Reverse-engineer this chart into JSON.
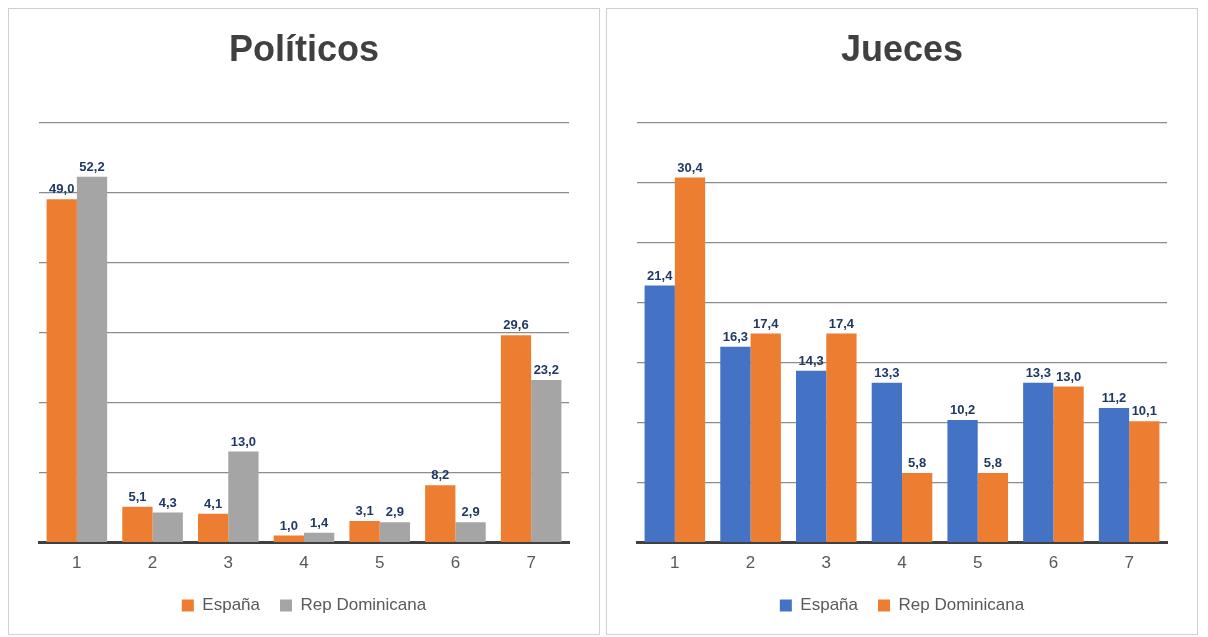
{
  "chart_data": [
    {
      "type": "bar",
      "title": "Políticos",
      "categories": [
        "1",
        "2",
        "3",
        "4",
        "5",
        "6",
        "7"
      ],
      "series": [
        {
          "name": "España",
          "color": "#ed7d31",
          "values": [
            49.0,
            5.1,
            4.1,
            1.0,
            3.1,
            8.2,
            29.6
          ],
          "value_labels": [
            "49,0",
            "5,1",
            "4,1",
            "1,0",
            "3,1",
            "8,2",
            "29,6"
          ]
        },
        {
          "name": "Rep Dominicana",
          "color": "#a5a5a5",
          "values": [
            52.2,
            4.3,
            13.0,
            1.4,
            2.9,
            2.9,
            23.2
          ],
          "value_labels": [
            "52,2",
            "4,3",
            "13,0",
            "1,4",
            "2,9",
            "2,9",
            "23,2"
          ]
        }
      ],
      "ylim": [
        0,
        60
      ],
      "yticks": [
        {
          "value": 0,
          "label": null
        },
        {
          "value": 10,
          "label": null
        },
        {
          "value": 20,
          "label": null
        },
        {
          "value": 30,
          "label": null
        },
        {
          "value": 40,
          "label": null
        },
        {
          "value": 50,
          "label": null
        },
        {
          "value": 60,
          "label": null
        }
      ],
      "tick_labels": "x",
      "grid": "y",
      "legend": "bottom"
    },
    {
      "type": "bar",
      "title": "Jueces",
      "categories": [
        "1",
        "2",
        "3",
        "4",
        "5",
        "6",
        "7"
      ],
      "series": [
        {
          "name": "España",
          "color": "#4472c4",
          "values": [
            21.4,
            16.3,
            14.3,
            13.3,
            10.2,
            13.3,
            11.2
          ],
          "value_labels": [
            "21,4",
            "16,3",
            "14,3",
            "13,3",
            "10,2",
            "13,3",
            "11,2"
          ]
        },
        {
          "name": "Rep Dominicana",
          "color": "#ed7d31",
          "values": [
            30.4,
            17.4,
            17.4,
            5.8,
            5.8,
            13.0,
            10.1
          ],
          "value_labels": [
            "30,4",
            "17,4",
            "17,4",
            "5,8",
            "5,8",
            "13,0",
            "10,1"
          ]
        }
      ],
      "ylim": [
        0,
        35
      ],
      "yticks": [
        {
          "value": 0,
          "label": null
        },
        {
          "value": 5,
          "label": null
        },
        {
          "value": 10,
          "label": null
        },
        {
          "value": 15,
          "label": null
        },
        {
          "value": 20,
          "label": null
        },
        {
          "value": 25,
          "label": null
        },
        {
          "value": 30,
          "label": null
        },
        {
          "value": 35,
          "label": null
        }
      ],
      "tick_labels": "x",
      "grid": "y",
      "legend": "bottom"
    }
  ]
}
